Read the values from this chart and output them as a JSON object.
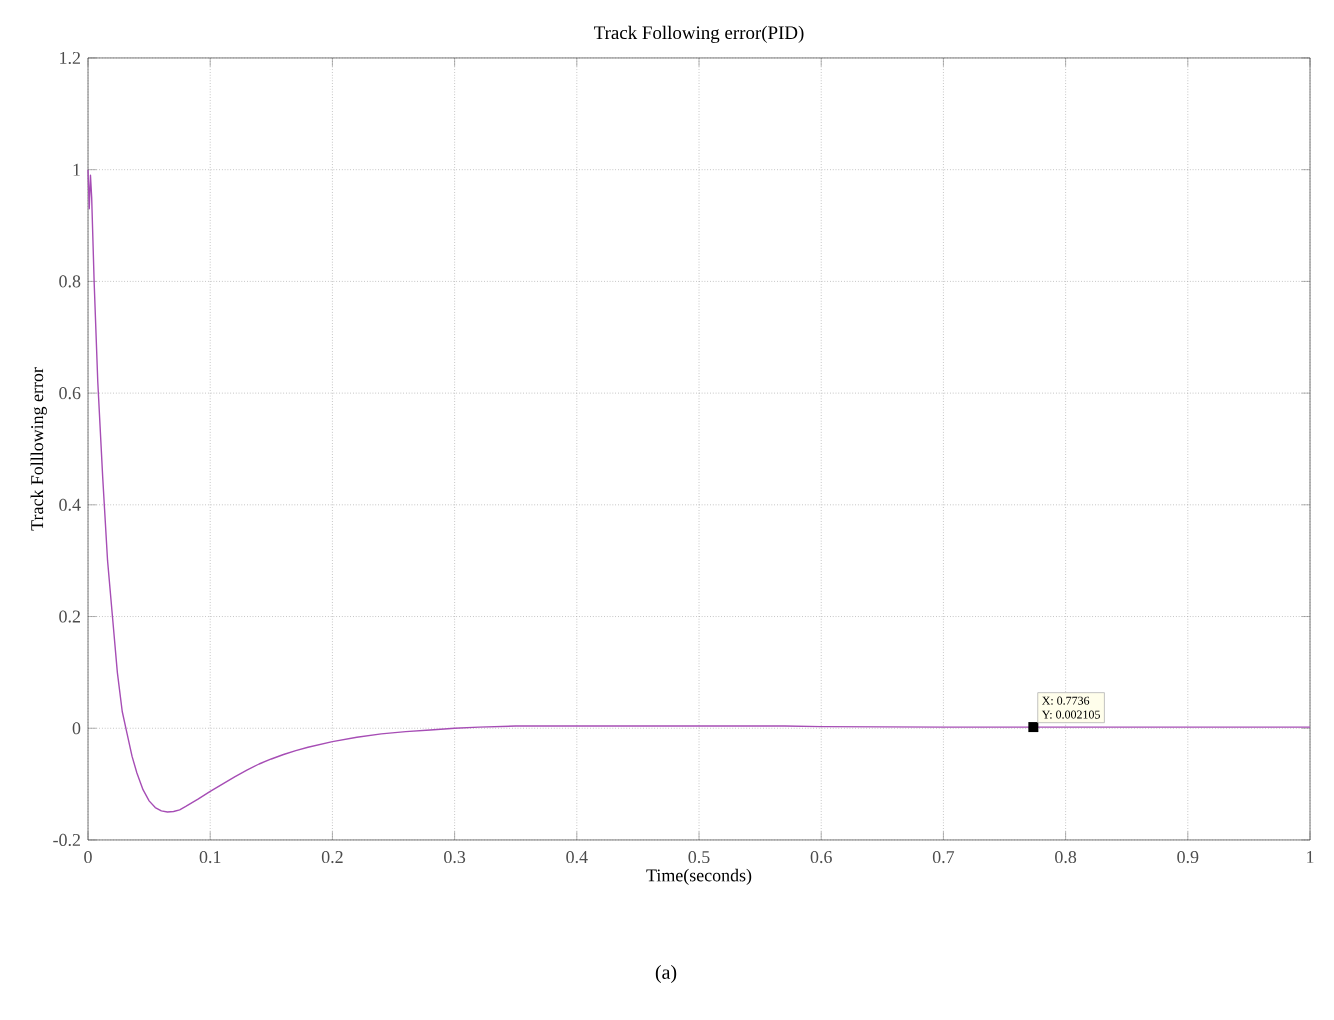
{
  "chart_data": {
    "type": "line",
    "title": "Track Following error(PID)",
    "xlabel": "Time(seconds)",
    "ylabel": "Track Folllowing error",
    "xlim": [
      0,
      1
    ],
    "ylim": [
      -0.2,
      1.2
    ],
    "xticks": [
      0,
      0.1,
      0.2,
      0.3,
      0.4,
      0.5,
      0.6,
      0.7,
      0.8,
      0.9,
      1
    ],
    "yticks": [
      -0.2,
      0,
      0.2,
      0.4,
      0.6,
      0.8,
      1,
      1.2
    ],
    "grid": true,
    "series": [
      {
        "color": "#a64db5",
        "x": [
          0,
          0.001,
          0.002,
          0.003,
          0.005,
          0.008,
          0.012,
          0.016,
          0.02,
          0.024,
          0.028,
          0.032,
          0.036,
          0.04,
          0.045,
          0.05,
          0.055,
          0.06,
          0.065,
          0.07,
          0.075,
          0.08,
          0.09,
          0.1,
          0.11,
          0.12,
          0.13,
          0.14,
          0.15,
          0.16,
          0.17,
          0.18,
          0.2,
          0.22,
          0.24,
          0.26,
          0.28,
          0.3,
          0.32,
          0.35,
          0.4,
          0.45,
          0.5,
          0.57,
          0.6,
          0.7,
          0.7736,
          0.8,
          0.9,
          1
        ],
        "values": [
          1.0,
          0.93,
          0.99,
          0.95,
          0.8,
          0.62,
          0.45,
          0.3,
          0.2,
          0.1,
          0.03,
          -0.01,
          -0.05,
          -0.08,
          -0.11,
          -0.13,
          -0.142,
          -0.148,
          -0.15,
          -0.149,
          -0.146,
          -0.14,
          -0.127,
          -0.113,
          -0.1,
          -0.087,
          -0.075,
          -0.064,
          -0.055,
          -0.047,
          -0.04,
          -0.034,
          -0.024,
          -0.016,
          -0.01,
          -0.006,
          -0.003,
          0.0,
          0.002,
          0.004,
          0.004,
          0.004,
          0.004,
          0.004,
          0.003,
          0.002,
          0.002105,
          0.002,
          0.002,
          0.002
        ]
      }
    ],
    "annotations": [
      {
        "text": "X: 0.7736",
        "x": 0.7736,
        "y": 0.002105
      },
      {
        "text": "Y: 0.002105",
        "x": 0.7736,
        "y": 0.002105
      },
      "(a)"
    ]
  }
}
